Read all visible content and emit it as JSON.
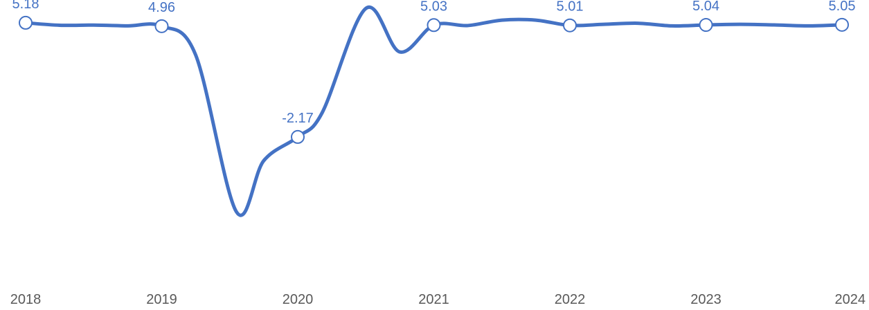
{
  "chart_data": {
    "type": "line",
    "title": "",
    "xlabel": "",
    "ylabel": "",
    "categories": [
      "2018",
      "2019",
      "2020",
      "2021",
      "2022",
      "2023",
      "2024"
    ],
    "ylim": [
      -8.5,
      6.2
    ],
    "grid": false,
    "legend": "none",
    "series": [
      {
        "labels": [
          "5.18",
          "4.96",
          "-2.17",
          "5.03",
          "5.01",
          "5.04",
          "5.05"
        ],
        "points": [
          {
            "x": 2018.0,
            "y": 5.18
          },
          {
            "x": 2018.25,
            "y": 5.02
          },
          {
            "x": 2018.5,
            "y": 5.03
          },
          {
            "x": 2018.75,
            "y": 4.98
          },
          {
            "x": 2019.0,
            "y": 4.96
          },
          {
            "x": 2019.25,
            "y": 3.1
          },
          {
            "x": 2019.55,
            "y": -7.0
          },
          {
            "x": 2019.75,
            "y": -3.7
          },
          {
            "x": 2020.0,
            "y": -2.17
          },
          {
            "x": 2020.18,
            "y": -0.6
          },
          {
            "x": 2020.5,
            "y": 6.1
          },
          {
            "x": 2020.75,
            "y": 3.3
          },
          {
            "x": 2021.0,
            "y": 5.03
          },
          {
            "x": 2021.25,
            "y": 5.0
          },
          {
            "x": 2021.5,
            "y": 5.35
          },
          {
            "x": 2021.75,
            "y": 5.35
          },
          {
            "x": 2022.0,
            "y": 5.01
          },
          {
            "x": 2022.25,
            "y": 5.08
          },
          {
            "x": 2022.5,
            "y": 5.15
          },
          {
            "x": 2022.75,
            "y": 4.98
          },
          {
            "x": 2023.0,
            "y": 5.04
          },
          {
            "x": 2023.25,
            "y": 5.08
          },
          {
            "x": 2023.5,
            "y": 5.04
          },
          {
            "x": 2023.75,
            "y": 4.98
          },
          {
            "x": 2024.0,
            "y": 5.05
          }
        ]
      }
    ],
    "colors": {
      "line": "#4472C4",
      "marker_fill": "#FFFFFF",
      "data_label": "#4472C4",
      "tick_label": "#595959"
    }
  }
}
